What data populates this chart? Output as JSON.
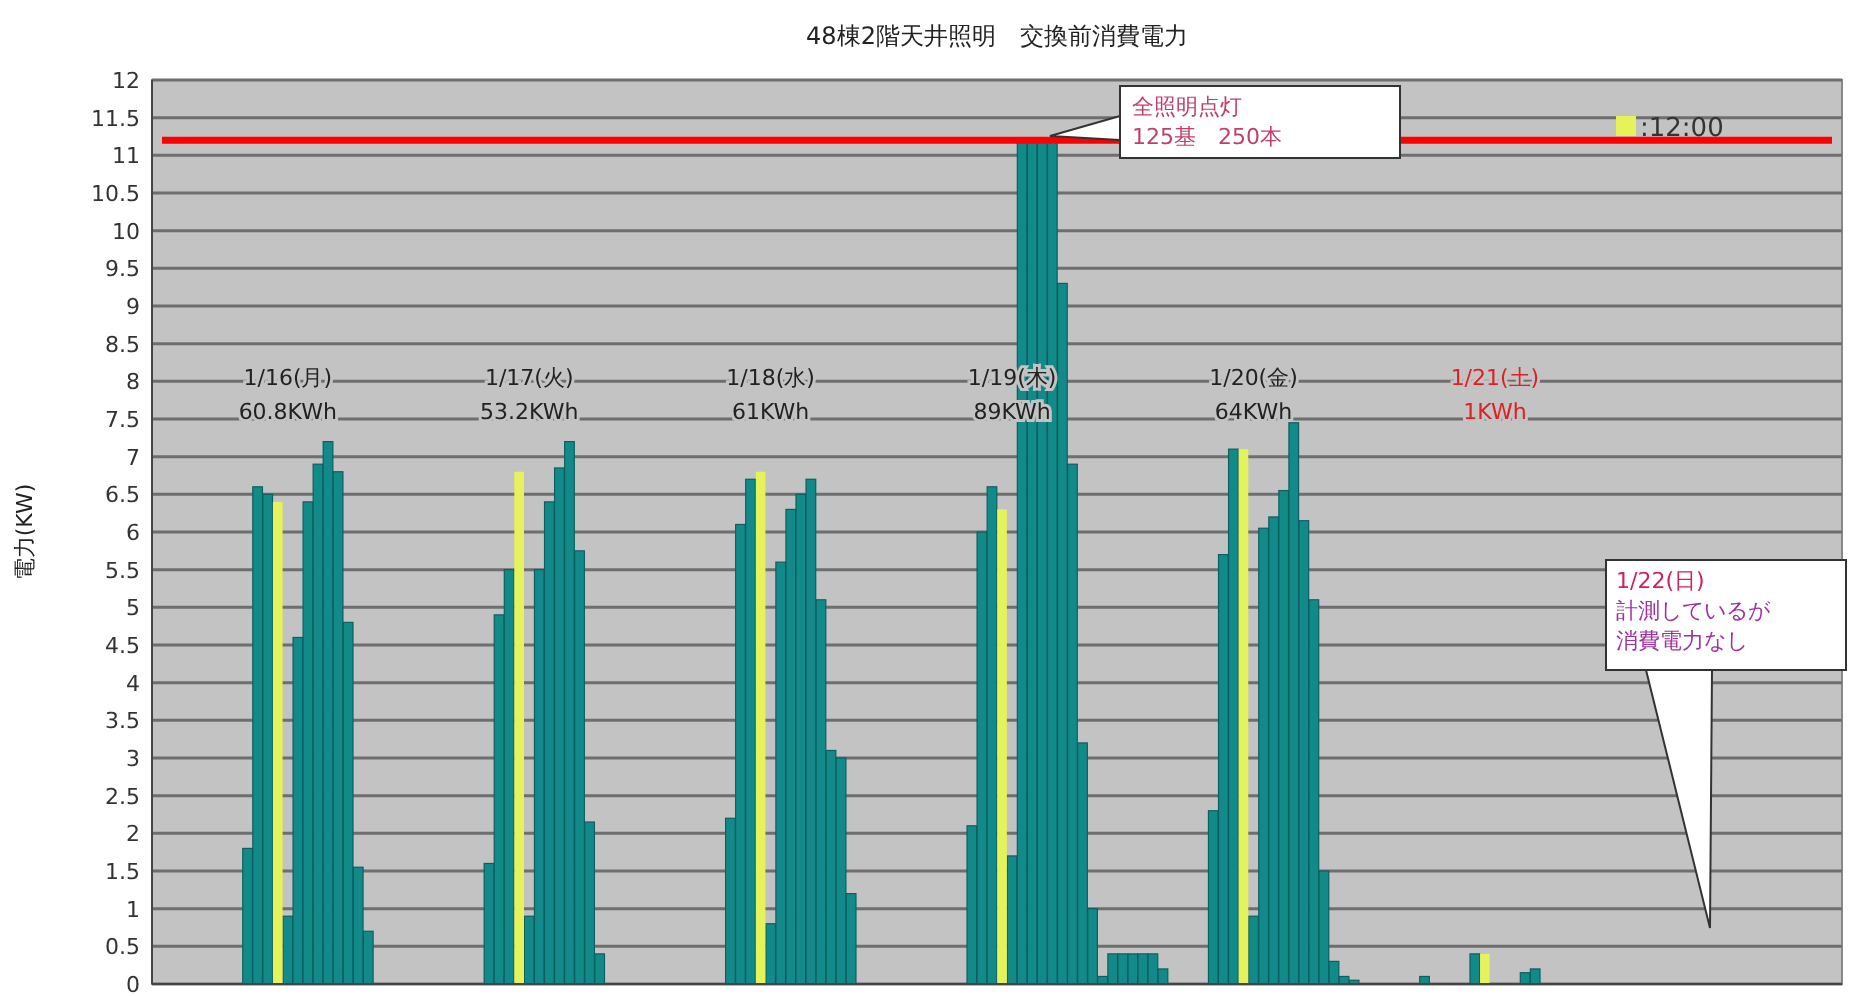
{
  "chart_data": {
    "type": "bar",
    "title": "48棟2階天井照明　交換前消費電力",
    "ylabel": "電力(KW)",
    "categories": [
      null,
      null,
      null,
      null,
      null,
      null,
      null,
      null,
      null,
      null,
      null,
      null,
      null,
      null,
      null,
      null,
      null,
      null,
      null,
      null,
      null,
      null,
      null,
      null,
      null,
      null,
      null,
      null,
      null,
      null,
      null,
      null,
      null,
      null,
      null,
      null,
      null,
      null,
      null,
      null,
      null,
      null,
      null,
      null,
      null,
      null,
      null,
      null,
      null,
      null,
      null,
      null,
      null,
      null,
      null,
      null,
      null,
      null,
      null,
      null,
      null,
      null,
      null,
      null,
      null,
      null,
      null,
      null,
      null,
      null,
      null,
      null,
      null,
      null,
      null,
      null,
      null,
      null,
      null,
      null,
      null,
      null,
      null,
      null,
      null,
      null,
      null,
      null,
      null,
      null,
      null,
      null,
      null,
      null,
      null,
      null,
      null,
      null,
      null,
      null,
      null,
      null,
      null,
      null,
      null,
      null,
      null,
      null,
      null,
      null,
      null,
      null,
      null,
      null,
      null,
      null,
      null,
      null,
      null,
      null,
      null,
      null,
      null,
      null,
      null,
      null,
      null,
      null,
      null,
      null,
      null,
      null,
      null,
      null,
      null,
      null,
      null,
      null,
      null,
      null,
      null,
      null,
      null,
      null,
      null,
      null,
      null,
      null,
      null,
      null,
      null,
      null,
      null,
      null,
      null,
      null,
      null,
      null,
      null,
      null,
      null,
      null,
      null,
      null,
      null,
      null,
      null,
      null
    ],
    "series": [
      {
        "color": "#138a8a",
        "values": [
          0,
          0,
          0,
          0,
          0,
          0,
          0,
          0,
          0,
          1.8,
          6.6,
          6.5,
          null,
          0.9,
          4.6,
          6.4,
          6.9,
          7.2,
          6.8,
          4.8,
          1.55,
          0.7,
          0,
          0,
          0,
          0,
          0,
          0,
          0,
          0,
          0,
          0,
          0,
          1.6,
          4.9,
          5.5,
          null,
          0.9,
          5.5,
          6.4,
          6.85,
          7.2,
          5.75,
          2.15,
          0.4,
          0,
          0,
          0,
          0,
          0,
          0,
          0,
          0,
          0,
          0,
          0,
          0,
          2.2,
          6.1,
          6.7,
          null,
          0.8,
          5.6,
          6.3,
          6.5,
          6.7,
          5.1,
          3.1,
          3.0,
          1.2,
          0,
          0,
          0,
          0,
          0,
          0,
          0,
          0,
          0,
          0,
          0,
          2.1,
          6.0,
          6.6,
          null,
          1.7,
          11.2,
          11.2,
          11.2,
          11.2,
          9.3,
          6.9,
          3.2,
          1.0,
          0.1,
          0.4,
          0.4,
          0.4,
          0.4,
          0.4,
          0.2,
          0,
          0,
          0,
          0,
          2.3,
          5.7,
          7.1,
          null,
          0.9,
          6.05,
          6.2,
          6.55,
          7.45,
          6.15,
          5.1,
          1.5,
          0.3,
          0.1,
          0.05,
          0,
          0,
          0,
          0,
          0,
          0,
          0.1,
          0,
          0,
          0,
          0,
          0.4,
          null,
          0,
          0,
          0,
          0.15,
          0.2,
          0,
          0,
          0,
          0,
          0,
          0,
          0,
          0,
          0,
          0,
          0,
          0,
          0,
          0,
          0,
          0,
          0,
          0,
          null,
          0,
          0,
          0,
          0,
          0,
          0,
          0,
          0,
          0,
          0,
          0
        ]
      },
      {
        "name": ":12:00",
        "color": "#e6f25a",
        "values": [
          null,
          null,
          null,
          null,
          null,
          null,
          null,
          null,
          null,
          null,
          null,
          null,
          6.4,
          null,
          null,
          null,
          null,
          null,
          null,
          null,
          null,
          null,
          null,
          null,
          null,
          null,
          null,
          null,
          null,
          null,
          null,
          null,
          null,
          null,
          null,
          null,
          6.8,
          null,
          null,
          null,
          null,
          null,
          null,
          null,
          null,
          null,
          null,
          null,
          null,
          null,
          null,
          null,
          null,
          null,
          null,
          null,
          null,
          null,
          null,
          null,
          6.8,
          null,
          null,
          null,
          null,
          null,
          null,
          null,
          null,
          null,
          null,
          null,
          null,
          null,
          null,
          null,
          null,
          null,
          null,
          null,
          null,
          null,
          null,
          null,
          6.3,
          null,
          null,
          null,
          null,
          null,
          null,
          null,
          null,
          null,
          null,
          null,
          null,
          null,
          null,
          null,
          null,
          null,
          null,
          null,
          null,
          null,
          null,
          null,
          7.1,
          null,
          null,
          null,
          null,
          null,
          null,
          null,
          null,
          null,
          null,
          null,
          null,
          null,
          null,
          null,
          null,
          null,
          null,
          null,
          null,
          null,
          null,
          null,
          0.4,
          null,
          null,
          null,
          null,
          null,
          null,
          null,
          null,
          null,
          null,
          null,
          null,
          null,
          null,
          null,
          null,
          null,
          null,
          null,
          null,
          null,
          null,
          null,
          0,
          null,
          null,
          null,
          null,
          null,
          null,
          null,
          null,
          null,
          null,
          null
        ]
      }
    ],
    "ylim": [
      0,
      12
    ],
    "yticks": [
      0,
      0.5,
      1,
      1.5,
      2,
      2.5,
      3,
      3.5,
      4,
      4.5,
      5,
      5.5,
      6,
      6.5,
      7,
      7.5,
      8,
      8.5,
      9,
      9.5,
      10,
      10.5,
      11,
      11.5,
      12
    ],
    "grid": "y",
    "legend": "top right",
    "ref_lines": [
      {
        "axis": "y",
        "value": 11.2,
        "color": "#ff0000"
      }
    ],
    "annotations": [
      "1/16(月)\n60.8KWh",
      "1/17(火)\n53.2KWh",
      "1/18(水)\n61KWh",
      "1/19(木)\n89KWh",
      "1/20(金)\n64KWh",
      "1/21(土)\n1KWh",
      "全照明点灯\n125基　250本",
      "1/22(日)",
      "計測しているが",
      "消費電力なし"
    ]
  }
}
